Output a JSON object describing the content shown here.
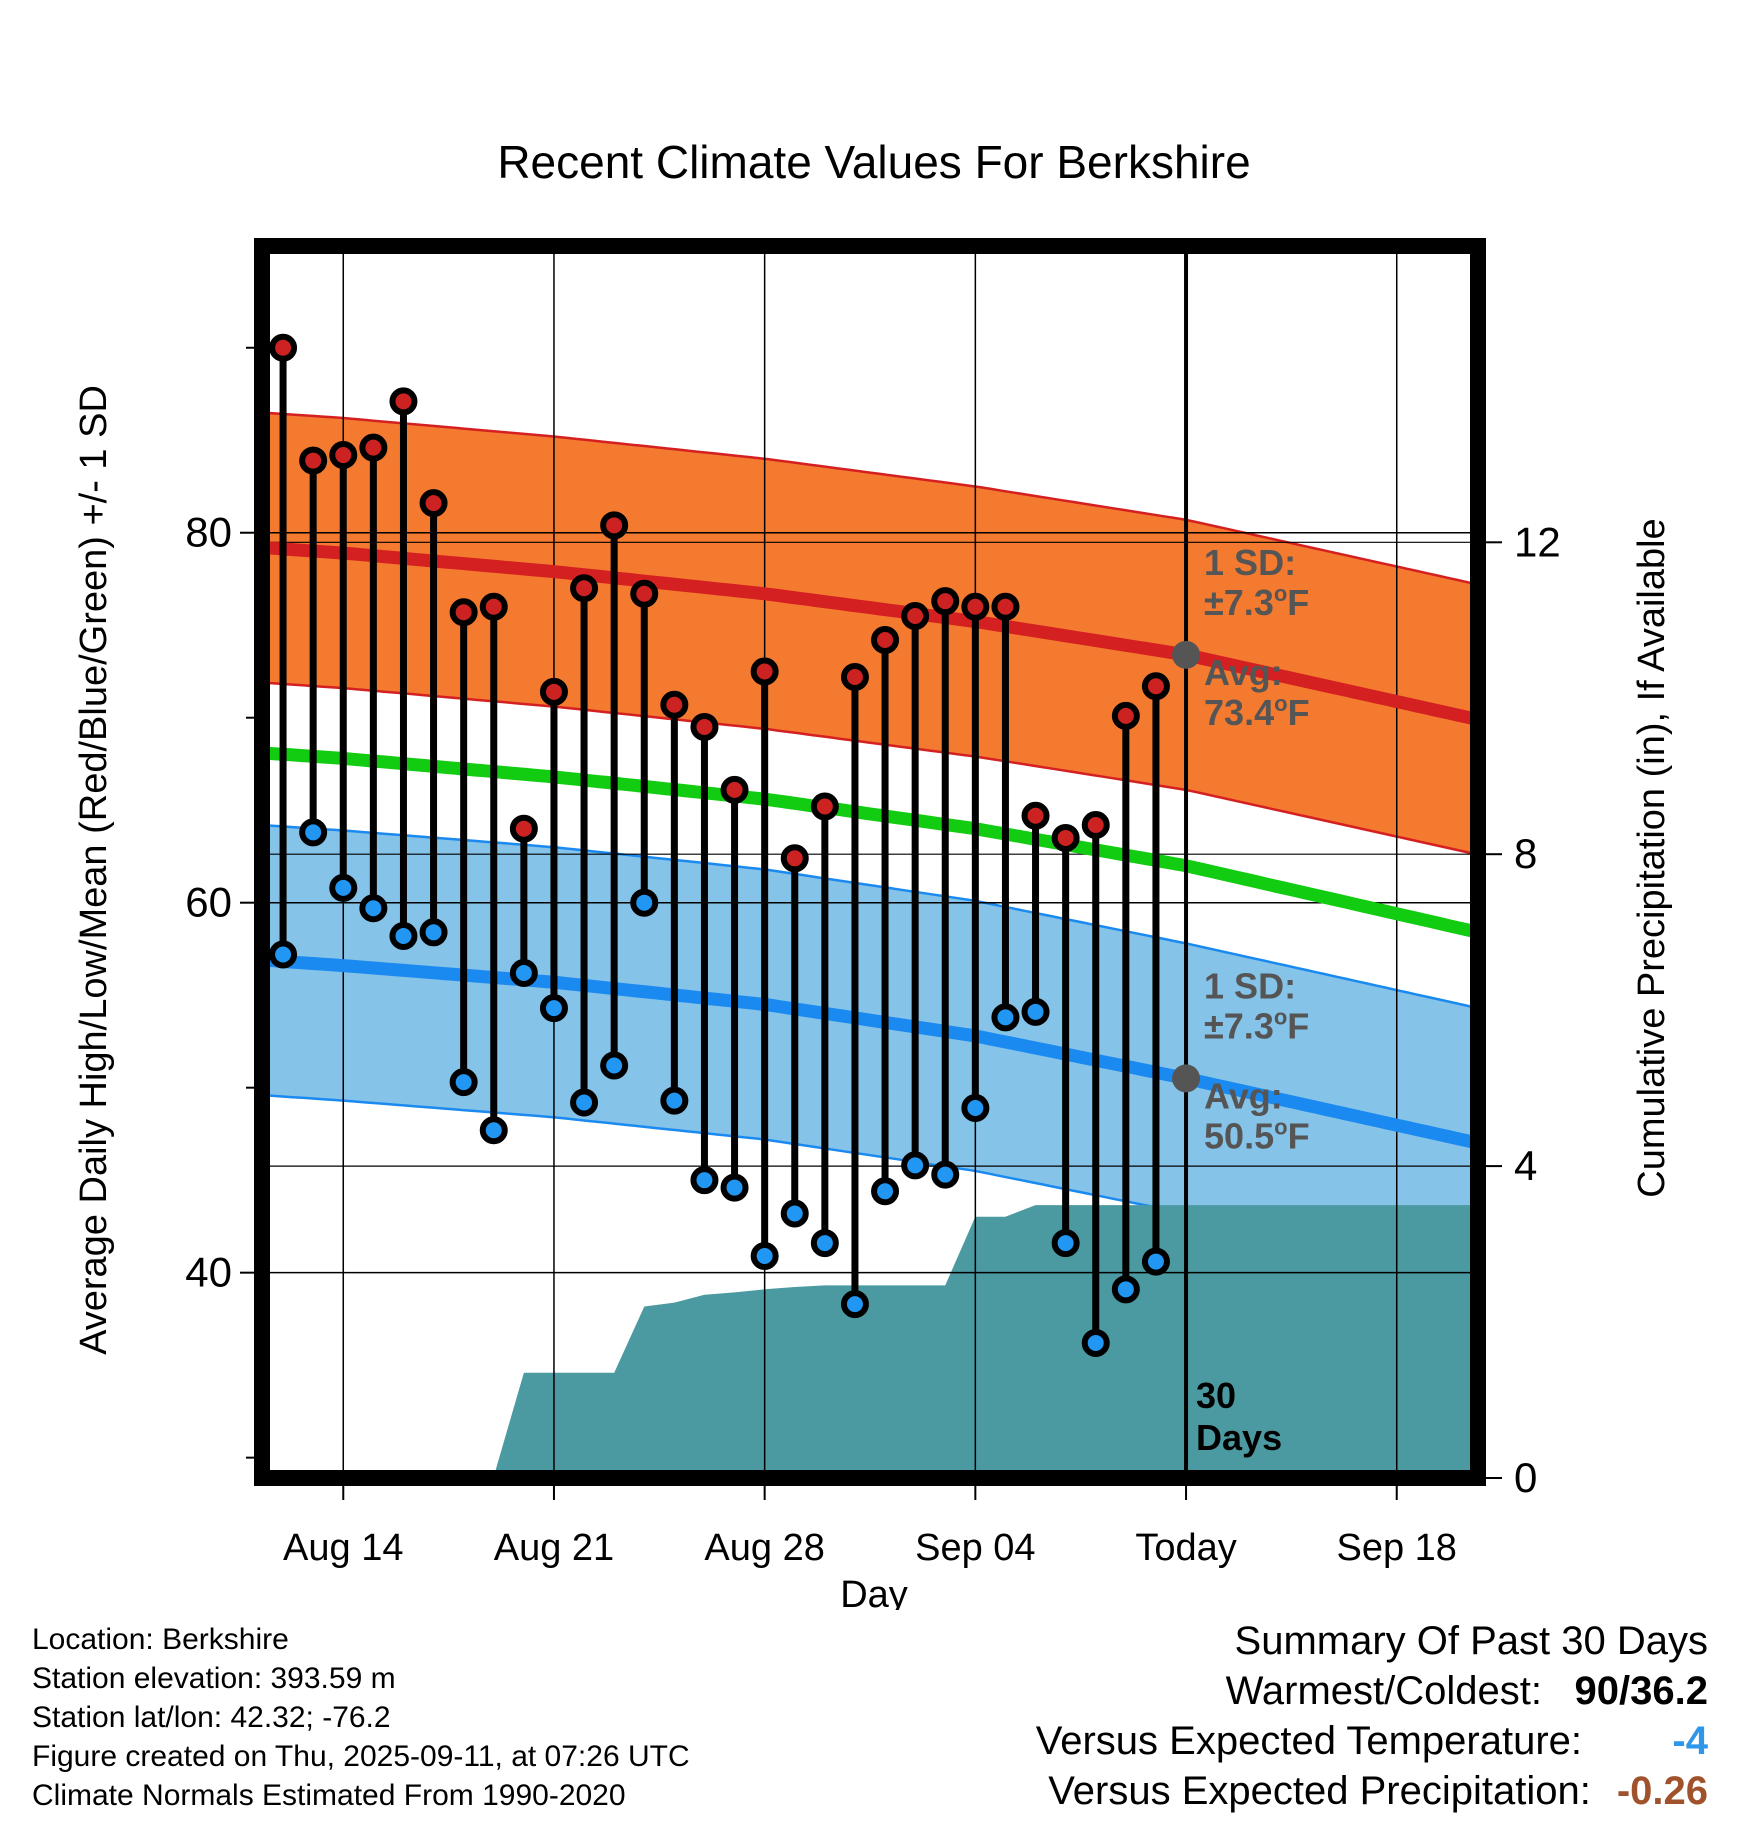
{
  "title": "Recent Climate Values For Berkshire",
  "colors": {
    "high_band": "#f47a30",
    "high_line": "#d42020",
    "low_band": "#86c3e8",
    "low_line": "#1a8af0",
    "mean_line": "#11cc11",
    "precip": "#4b9aa1",
    "high_point": "#cc2222",
    "low_point": "#2196f3",
    "annot_text": "#555555",
    "coldness": "#2f97e9",
    "precip_dev": "#a0522d"
  },
  "chart_data": {
    "type": "line",
    "title": "Recent Climate Values For Berkshire",
    "xlabel": "Day",
    "ylabel": "Average Daily High/Low/Mean (Red/Blue/Green) +/- 1 SD",
    "y2label": "Cumulative Precipitation (in), If Available",
    "x_ticks": [
      "Aug 14",
      "Aug 21",
      "Aug 28",
      "Sep 04",
      "Today",
      "Sep 18"
    ],
    "x_tick_days": [
      14,
      21,
      28,
      35,
      42,
      49
    ],
    "x_range": [
      11.3,
      51.7
    ],
    "ylim": [
      28.9,
      95.5
    ],
    "y_ticks": [
      40,
      60,
      80
    ],
    "y_minor_ticks": [
      30,
      50,
      70,
      90
    ],
    "y2lim": [
      0,
      15.8
    ],
    "y2_ticks": [
      0,
      4,
      8,
      12
    ],
    "today_day": 42,
    "grid": true,
    "series": [
      {
        "name": "High",
        "x": [
          12,
          13,
          14,
          15,
          16,
          17,
          18,
          19,
          20,
          21,
          22,
          23,
          24,
          25,
          26,
          27,
          28,
          29,
          30,
          31,
          32,
          33,
          34,
          35,
          36,
          37,
          38,
          39,
          40,
          41
        ],
        "values": [
          90,
          83.9,
          84.2,
          84.6,
          87.1,
          81.6,
          75.7,
          76,
          64,
          71.4,
          77,
          80.4,
          76.7,
          70.7,
          69.5,
          66.1,
          72.5,
          62.4,
          65.2,
          72.2,
          74.2,
          75.5,
          76.3,
          76,
          76,
          64.7,
          63.5,
          64.2,
          70.1,
          71.7
        ]
      },
      {
        "name": "Low",
        "x": [
          12,
          13,
          14,
          15,
          16,
          17,
          18,
          19,
          20,
          21,
          22,
          23,
          24,
          25,
          26,
          27,
          28,
          29,
          30,
          31,
          32,
          33,
          34,
          35,
          36,
          37,
          38,
          39,
          40,
          41
        ],
        "values": [
          57.2,
          63.8,
          60.8,
          59.7,
          58.2,
          58.4,
          50.3,
          47.7,
          56.2,
          54.3,
          49.2,
          51.2,
          60,
          49.3,
          45,
          44.6,
          40.9,
          43.2,
          41.6,
          38.3,
          44.4,
          45.8,
          45.3,
          48.9,
          53.8,
          54.1,
          41.6,
          36.2,
          39.1,
          40.6
        ]
      },
      {
        "name": "Normal High",
        "x": [
          11.3,
          14,
          21,
          28,
          35,
          42,
          51.7
        ],
        "values": [
          79.2,
          78.9,
          77.9,
          76.7,
          75.2,
          73.4,
          69.9
        ]
      },
      {
        "name": "Normal Low",
        "x": [
          11.3,
          14,
          21,
          28,
          35,
          42,
          51.7
        ],
        "values": [
          56.9,
          56.6,
          55.7,
          54.5,
          52.8,
          50.5,
          47
        ]
      },
      {
        "name": "Normal Mean",
        "x": [
          11.3,
          14,
          21,
          28,
          35,
          42,
          51.7
        ],
        "values": [
          68.1,
          67.8,
          66.8,
          65.6,
          64,
          62,
          58.4
        ]
      },
      {
        "name": "Cumulative Precipitation",
        "x": [
          11.3,
          16,
          17.5,
          19,
          20,
          21,
          22,
          23,
          24,
          25,
          26,
          27,
          28,
          29,
          30,
          31,
          32,
          33,
          34,
          35,
          36,
          37,
          38,
          42,
          51.7
        ],
        "values": [
          0,
          0,
          0.02,
          0.02,
          1.35,
          1.35,
          1.35,
          1.35,
          2.2,
          2.25,
          2.35,
          2.38,
          2.42,
          2.45,
          2.47,
          2.47,
          2.47,
          2.47,
          2.47,
          3.35,
          3.35,
          3.5,
          3.5,
          3.5,
          3.5
        ]
      }
    ],
    "high_sd": 7.3,
    "low_sd": 7.3
  },
  "annotations": {
    "high_sd_1": "1 SD:",
    "high_sd_2": "±7.3",
    "high_sd_unit": "F",
    "high_avg_1": "Avg:",
    "high_avg_2": "73.4",
    "high_avg_unit": "F",
    "low_sd_1": "1 SD:",
    "low_sd_2": "±7.3",
    "low_sd_unit": "F",
    "low_avg_1": "Avg:",
    "low_avg_2": "50.5",
    "low_avg_unit": "F",
    "degree": "o",
    "days_1": "30",
    "days_2": "Days"
  },
  "footer": {
    "location": "Location: Berkshire",
    "elevation": "Station elevation: 393.59 m",
    "latlon": "Station lat/lon: 42.32; -76.2",
    "created": "Figure created on Thu, 2025-09-11, at 07:26 UTC",
    "normals": "Climate Normals Estimated From 1990-2020"
  },
  "summary": {
    "heading": "Summary Of Past 30 Days",
    "warm_cold_label": "Warmest/Coldest:",
    "warm_cold_value": "90/36.2",
    "temp_label": "Versus Expected Temperature:",
    "temp_value": "-4",
    "precip_label": "Versus Expected Precipitation:",
    "precip_value": "-0.26"
  }
}
